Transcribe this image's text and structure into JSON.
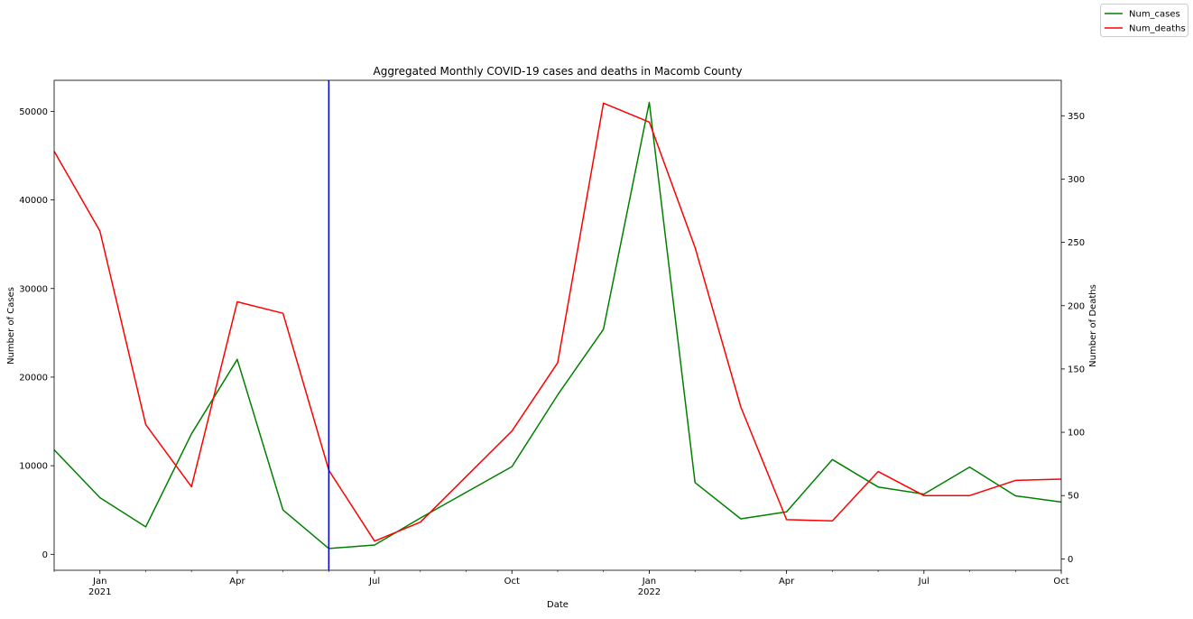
{
  "chart_data": {
    "type": "line",
    "title": "Aggregated Monthly COVID-19 cases and deaths in Macomb County",
    "xlabel": "Date",
    "ylabel": "Number of Cases",
    "y2label": "Number of Deaths",
    "x": [
      "2020-12",
      "2021-01",
      "2021-02",
      "2021-03",
      "2021-04",
      "2021-05",
      "2021-06",
      "2021-07",
      "2021-08",
      "2021-09",
      "2021-10",
      "2021-11",
      "2021-12",
      "2022-01",
      "2022-02",
      "2022-03",
      "2022-04",
      "2022-05",
      "2022-06",
      "2022-07",
      "2022-08",
      "2022-09",
      "2022-10"
    ],
    "xlim": [
      "2020-12",
      "2022-10"
    ],
    "x_ticks_major": [
      {
        "x": "2021-01",
        "label": "Jan",
        "sublabel": "2021"
      },
      {
        "x": "2021-04",
        "label": "Apr",
        "sublabel": ""
      },
      {
        "x": "2021-07",
        "label": "Jul",
        "sublabel": ""
      },
      {
        "x": "2021-10",
        "label": "Oct",
        "sublabel": ""
      },
      {
        "x": "2022-01",
        "label": "Jan",
        "sublabel": "2022"
      },
      {
        "x": "2022-04",
        "label": "Apr",
        "sublabel": ""
      },
      {
        "x": "2022-07",
        "label": "Jul",
        "sublabel": ""
      },
      {
        "x": "2022-10",
        "label": "Oct",
        "sublabel": ""
      }
    ],
    "ylim": [
      -1800,
      53500
    ],
    "y_ticks": [
      0,
      10000,
      20000,
      30000,
      40000,
      50000
    ],
    "y2lim": [
      -9,
      378
    ],
    "y2_ticks": [
      0,
      50,
      100,
      150,
      200,
      250,
      300,
      350
    ],
    "series": [
      {
        "name": "Num_cases",
        "axis": "left",
        "color": "#008000",
        "values": [
          11800,
          6400,
          3100,
          13600,
          22000,
          5000,
          650,
          1050,
          4100,
          7000,
          9900,
          18000,
          25400,
          51000,
          8100,
          4000,
          4800,
          10700,
          7600,
          6800,
          9850,
          6600,
          5900
        ]
      },
      {
        "name": "Num_deaths",
        "axis": "right",
        "color": "#ff0000",
        "values": [
          322,
          259,
          106,
          57,
          203,
          194,
          70,
          14,
          29,
          65,
          101,
          155,
          360,
          345,
          246,
          120,
          31,
          30,
          69,
          50,
          50,
          62,
          63
        ]
      }
    ],
    "vline": {
      "x": "2021-06",
      "color": "#0000cc"
    },
    "legend_position": "top-right",
    "grid": false
  }
}
